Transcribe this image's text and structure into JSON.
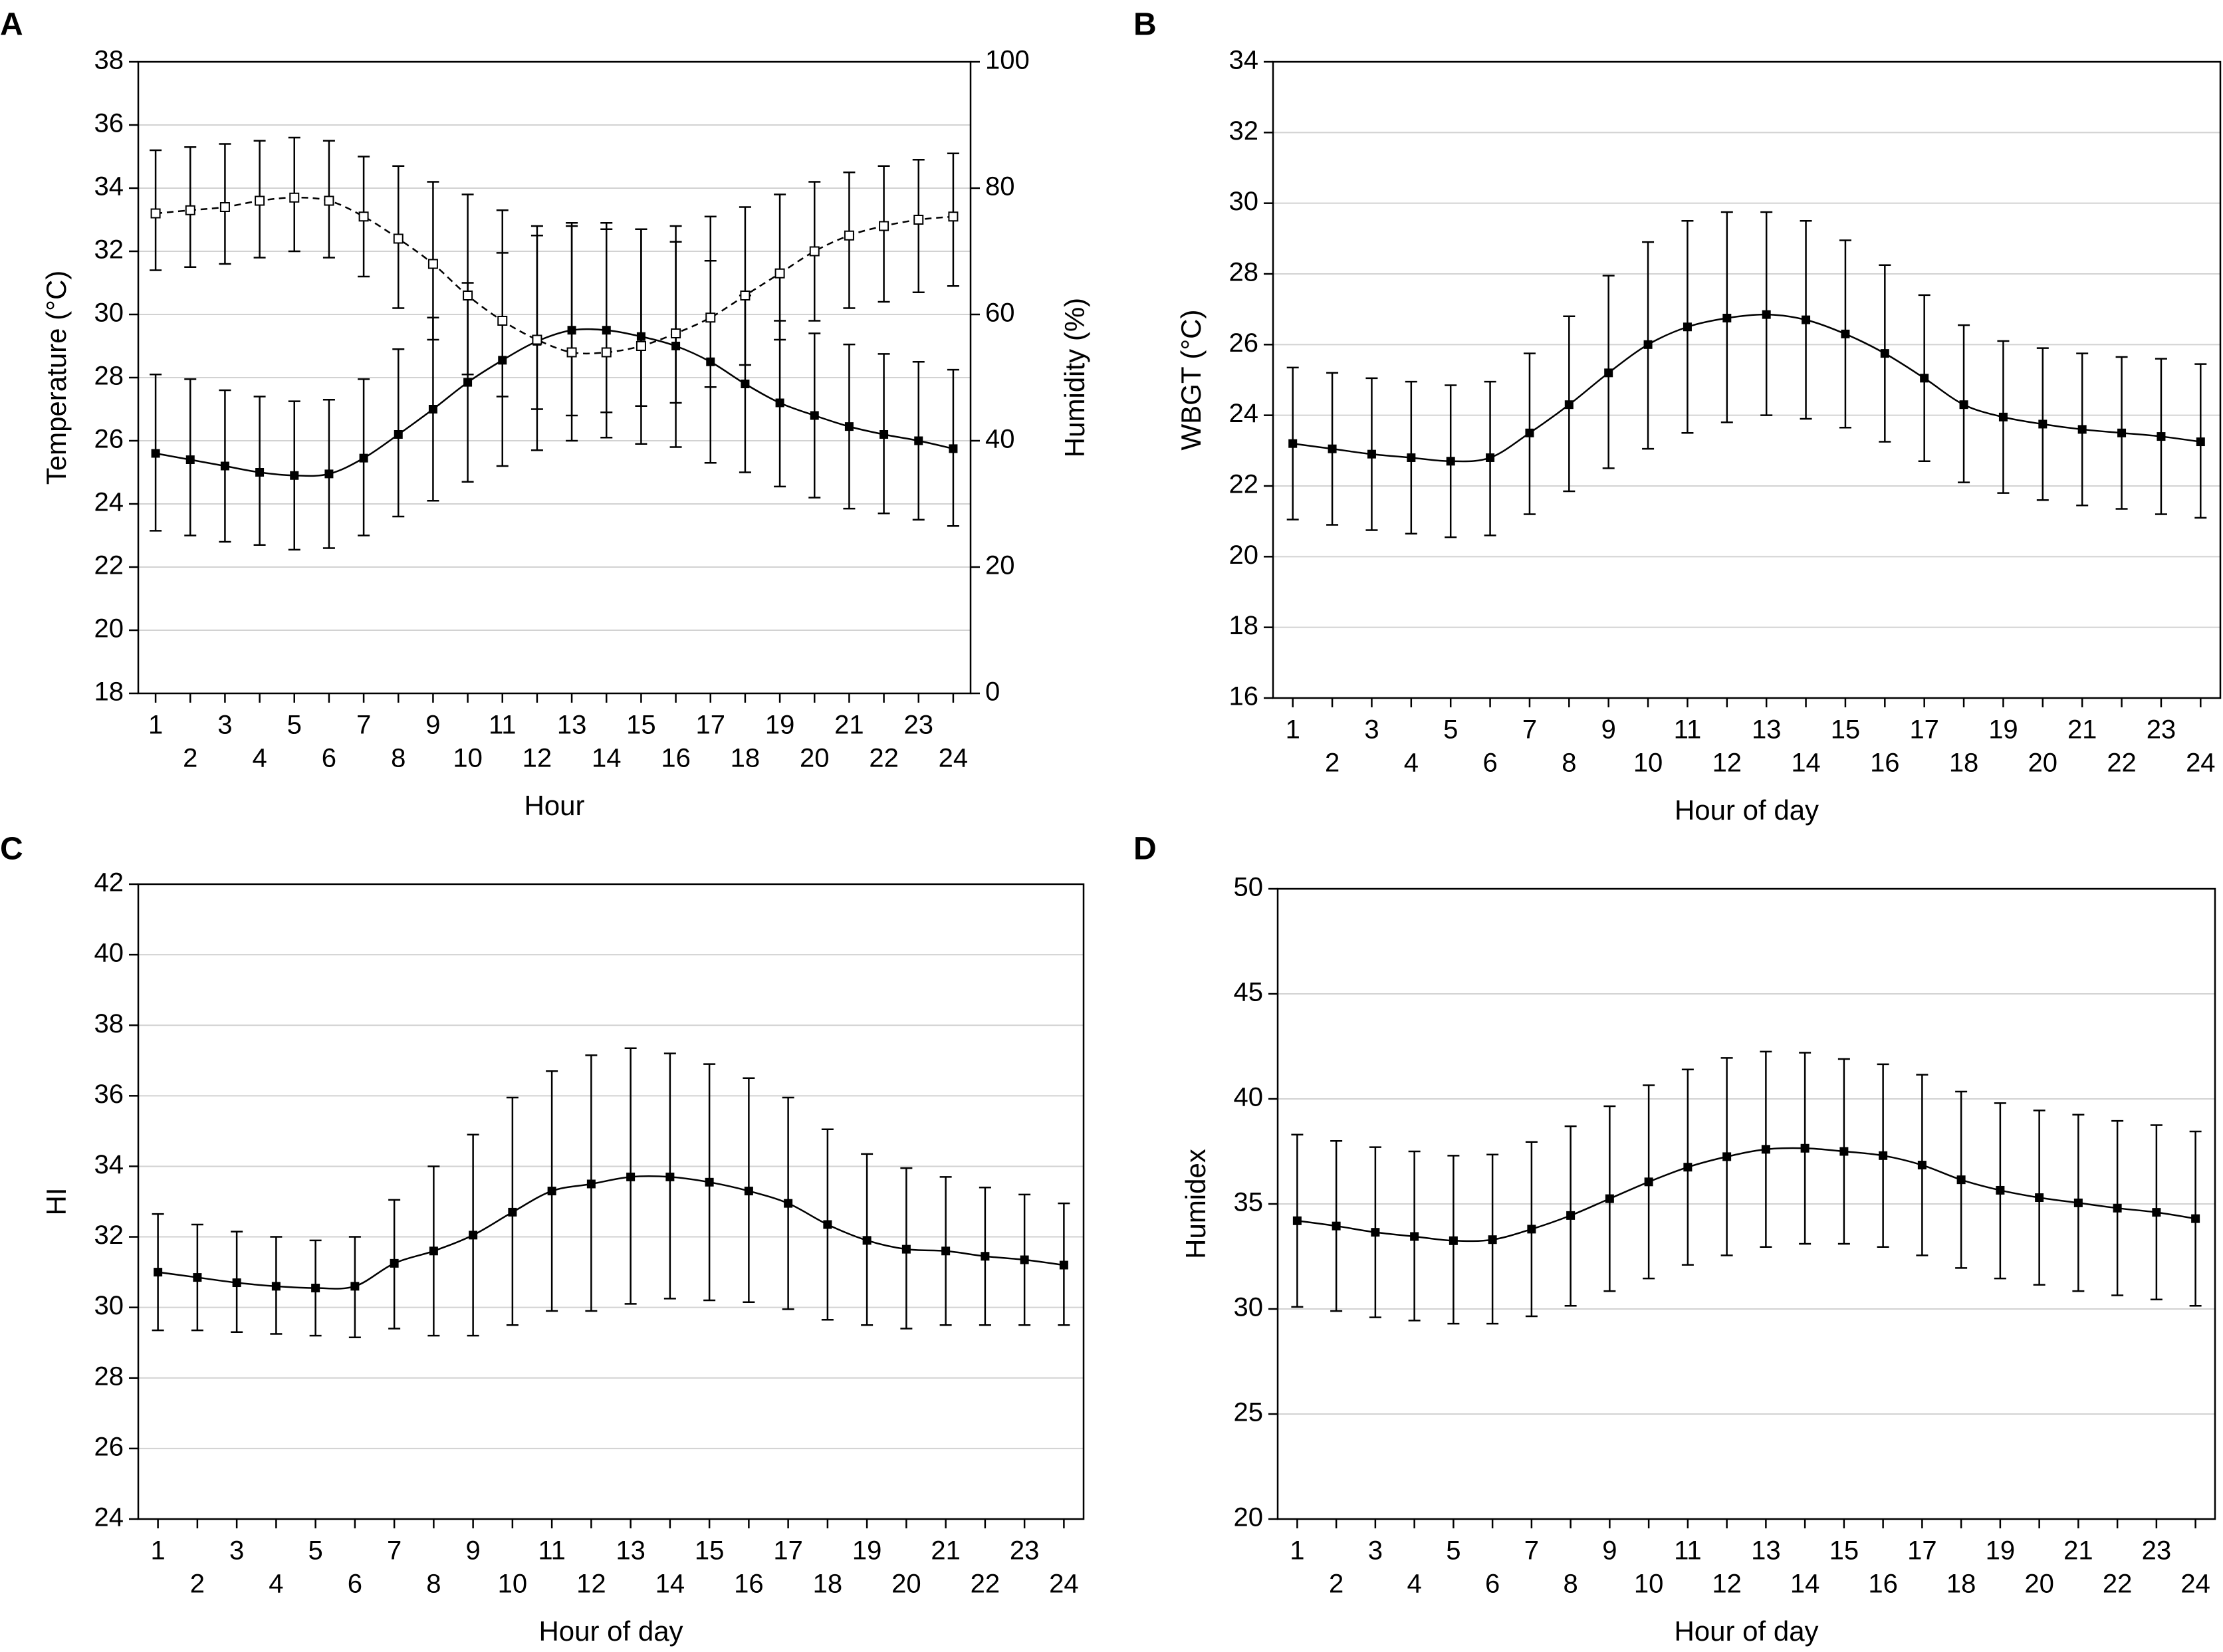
{
  "chart_data": [
    {
      "id": "A",
      "panel_label": "A",
      "type": "line",
      "xlabel": "Hour",
      "ylabel": "Temperature (°C)",
      "y2label": "Humidity (%)",
      "x": [
        1,
        2,
        3,
        4,
        5,
        6,
        7,
        8,
        9,
        10,
        11,
        12,
        13,
        14,
        15,
        16,
        17,
        18,
        19,
        20,
        21,
        22,
        23,
        24
      ],
      "x_ticks_top": [
        "1",
        "3",
        "5",
        "7",
        "9",
        "11",
        "13",
        "15",
        "17",
        "19",
        "21",
        "23"
      ],
      "x_ticks_bottom": [
        "2",
        "4",
        "6",
        "8",
        "10",
        "12",
        "14",
        "16",
        "18",
        "20",
        "22",
        "24"
      ],
      "ylim": [
        18,
        38
      ],
      "yticks": [
        "18",
        "20",
        "22",
        "24",
        "26",
        "28",
        "30",
        "32",
        "34",
        "36",
        "38"
      ],
      "y2lim": [
        0,
        100
      ],
      "y2ticks": [
        "0",
        "20",
        "40",
        "60",
        "80",
        "100"
      ],
      "grid": true,
      "series": [
        {
          "name": "Temperature",
          "axis": "left",
          "marker": "filled-square",
          "line": "solid",
          "values": [
            25.6,
            25.4,
            25.2,
            25.0,
            24.9,
            24.95,
            25.45,
            26.2,
            27.0,
            27.85,
            28.55,
            29.15,
            29.5,
            29.5,
            29.3,
            29.0,
            28.5,
            27.8,
            27.2,
            26.8,
            26.45,
            26.2,
            26.0,
            25.75
          ],
          "lower": [
            23.15,
            23.0,
            22.8,
            22.7,
            22.55,
            22.6,
            23.0,
            23.6,
            24.1,
            24.7,
            25.2,
            25.7,
            26.0,
            26.1,
            25.9,
            25.8,
            25.3,
            25.0,
            24.55,
            24.2,
            23.85,
            23.7,
            23.5,
            23.3
          ],
          "upper": [
            28.1,
            27.95,
            27.6,
            27.4,
            27.25,
            27.3,
            27.95,
            28.9,
            29.9,
            31.0,
            31.95,
            32.5,
            32.9,
            32.9,
            32.7,
            32.3,
            31.7,
            30.6,
            29.8,
            29.4,
            29.05,
            28.75,
            28.5,
            28.25
          ]
        },
        {
          "name": "Humidity",
          "axis": "right",
          "marker": "open-square",
          "line": "dashed",
          "values": [
            76,
            76.5,
            77,
            78,
            78.5,
            78,
            75.5,
            72,
            68,
            63,
            59,
            56,
            54,
            54,
            55,
            57,
            59.5,
            63,
            66.5,
            70,
            72.5,
            74,
            75,
            75.5
          ],
          "lower": [
            67,
            67.5,
            68,
            69,
            70,
            69,
            66,
            61,
            56,
            50.5,
            47,
            45,
            44,
            44.5,
            45.5,
            46,
            48.5,
            52,
            56,
            59,
            61,
            62,
            63.5,
            64.5
          ],
          "upper": [
            86,
            86.5,
            87,
            87.5,
            88,
            87.5,
            85,
            83.5,
            81,
            79,
            76.5,
            74,
            74,
            73.5,
            73.5,
            74,
            75.5,
            77,
            79,
            81,
            82.5,
            83.5,
            84.5,
            85.5
          ]
        }
      ]
    },
    {
      "id": "B",
      "panel_label": "B",
      "type": "line",
      "xlabel": "Hour of day",
      "ylabel": "WBGT (°C)",
      "x": [
        1,
        2,
        3,
        4,
        5,
        6,
        7,
        8,
        9,
        10,
        11,
        12,
        13,
        14,
        15,
        16,
        17,
        18,
        19,
        20,
        21,
        22,
        23,
        24
      ],
      "x_ticks_top": [
        "1",
        "3",
        "5",
        "7",
        "9",
        "11",
        "13",
        "15",
        "17",
        "19",
        "21",
        "23"
      ],
      "x_ticks_bottom": [
        "2",
        "4",
        "6",
        "8",
        "10",
        "12",
        "14",
        "16",
        "18",
        "20",
        "22",
        "24"
      ],
      "ylim": [
        16,
        34
      ],
      "yticks": [
        "16",
        "18",
        "20",
        "22",
        "24",
        "26",
        "28",
        "30",
        "32",
        "34"
      ],
      "grid": true,
      "series": [
        {
          "name": "WBGT",
          "axis": "left",
          "marker": "filled-square",
          "line": "solid",
          "values": [
            23.2,
            23.05,
            22.9,
            22.8,
            22.7,
            22.8,
            23.5,
            24.3,
            25.2,
            26.0,
            26.5,
            26.75,
            26.85,
            26.7,
            26.3,
            25.75,
            25.05,
            24.3,
            23.95,
            23.75,
            23.6,
            23.5,
            23.4,
            23.25
          ],
          "lower": [
            21.05,
            20.9,
            20.75,
            20.65,
            20.55,
            20.6,
            21.2,
            21.85,
            22.5,
            23.05,
            23.5,
            23.8,
            24.0,
            23.9,
            23.65,
            23.25,
            22.7,
            22.1,
            21.8,
            21.6,
            21.45,
            21.35,
            21.2,
            21.1
          ],
          "upper": [
            25.35,
            25.2,
            25.05,
            24.95,
            24.85,
            24.95,
            25.75,
            26.8,
            27.95,
            28.9,
            29.5,
            29.75,
            29.75,
            29.5,
            28.95,
            28.25,
            27.4,
            26.55,
            26.1,
            25.9,
            25.75,
            25.65,
            25.6,
            25.45
          ]
        }
      ]
    },
    {
      "id": "C",
      "panel_label": "C",
      "type": "line",
      "xlabel": "Hour of day",
      "ylabel": "HI",
      "x": [
        1,
        2,
        3,
        4,
        5,
        6,
        7,
        8,
        9,
        10,
        11,
        12,
        13,
        14,
        15,
        16,
        17,
        18,
        19,
        20,
        21,
        22,
        23,
        24
      ],
      "x_ticks_top": [
        "1",
        "3",
        "5",
        "7",
        "9",
        "11",
        "13",
        "15",
        "17",
        "19",
        "21",
        "23"
      ],
      "x_ticks_bottom": [
        "2",
        "4",
        "6",
        "8",
        "10",
        "12",
        "14",
        "16",
        "18",
        "20",
        "22",
        "24"
      ],
      "ylim": [
        24,
        42
      ],
      "yticks": [
        "24",
        "26",
        "28",
        "30",
        "32",
        "34",
        "36",
        "38",
        "40",
        "42"
      ],
      "grid": true,
      "series": [
        {
          "name": "HI",
          "axis": "left",
          "marker": "filled-square",
          "line": "solid",
          "values": [
            31.0,
            30.85,
            30.7,
            30.6,
            30.55,
            30.6,
            31.25,
            31.6,
            32.05,
            32.7,
            33.3,
            33.5,
            33.7,
            33.7,
            33.55,
            33.3,
            32.95,
            32.35,
            31.9,
            31.65,
            31.6,
            31.45,
            31.35,
            31.2
          ],
          "lower": [
            29.35,
            29.35,
            29.3,
            29.25,
            29.2,
            29.15,
            29.4,
            29.2,
            29.2,
            29.5,
            29.9,
            29.9,
            30.1,
            30.25,
            30.2,
            30.15,
            29.95,
            29.65,
            29.5,
            29.4,
            29.5,
            29.5,
            29.5,
            29.5
          ],
          "upper": [
            32.65,
            32.35,
            32.15,
            32.0,
            31.9,
            32.0,
            33.05,
            34.0,
            34.9,
            35.95,
            36.7,
            37.15,
            37.35,
            37.2,
            36.9,
            36.5,
            35.95,
            35.05,
            34.35,
            33.95,
            33.7,
            33.4,
            33.2,
            32.95
          ]
        }
      ]
    },
    {
      "id": "D",
      "panel_label": "D",
      "type": "line",
      "xlabel": "Hour of day",
      "ylabel": "Humidex",
      "x": [
        1,
        2,
        3,
        4,
        5,
        6,
        7,
        8,
        9,
        10,
        11,
        12,
        13,
        14,
        15,
        16,
        17,
        18,
        19,
        20,
        21,
        22,
        23,
        24
      ],
      "x_ticks_top": [
        "1",
        "3",
        "5",
        "7",
        "9",
        "11",
        "13",
        "15",
        "17",
        "19",
        "21",
        "23"
      ],
      "x_ticks_bottom": [
        "2",
        "4",
        "6",
        "8",
        "10",
        "12",
        "14",
        "16",
        "18",
        "20",
        "22",
        "24"
      ],
      "ylim": [
        20,
        50
      ],
      "yticks": [
        "20",
        "25",
        "30",
        "35",
        "40",
        "45",
        "50"
      ],
      "grid": true,
      "series": [
        {
          "name": "Humidex",
          "axis": "left",
          "marker": "filled-square",
          "line": "solid",
          "values": [
            34.2,
            33.95,
            33.65,
            33.45,
            33.25,
            33.3,
            33.8,
            34.45,
            35.25,
            36.05,
            36.75,
            37.25,
            37.6,
            37.65,
            37.5,
            37.3,
            36.85,
            36.15,
            35.65,
            35.3,
            35.05,
            34.8,
            34.6,
            34.3
          ],
          "lower": [
            30.1,
            29.9,
            29.6,
            29.45,
            29.3,
            29.3,
            29.65,
            30.15,
            30.85,
            31.45,
            32.1,
            32.55,
            32.95,
            33.1,
            33.1,
            32.95,
            32.55,
            31.95,
            31.45,
            31.15,
            30.85,
            30.65,
            30.45,
            30.15
          ],
          "upper": [
            38.3,
            38.0,
            37.7,
            37.5,
            37.3,
            37.35,
            37.95,
            38.7,
            39.65,
            40.65,
            41.4,
            41.95,
            42.25,
            42.2,
            41.9,
            41.65,
            41.15,
            40.35,
            39.8,
            39.45,
            39.25,
            38.95,
            38.75,
            38.45
          ]
        }
      ]
    }
  ]
}
